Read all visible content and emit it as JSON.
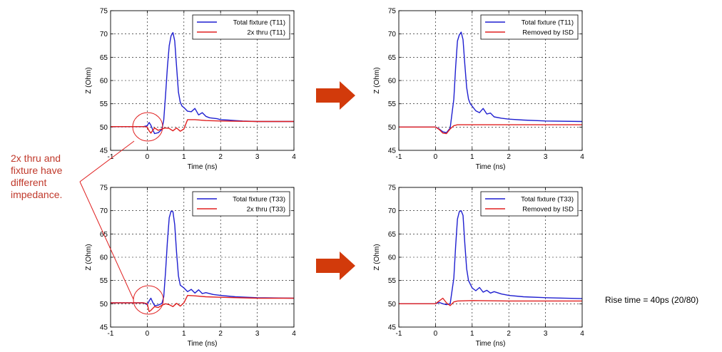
{
  "annotation": {
    "lines": [
      "2x thru and",
      "fixture have",
      "different",
      "impedance."
    ]
  },
  "rise_time": "Rise time = 40ps (20/80)",
  "colors": {
    "blue": "#1f1fd0",
    "red": "#e02020",
    "arrow": "#d23a0b",
    "note": "#c0392b"
  },
  "chart_data": [
    {
      "type": "line",
      "xlabel": "Time (ns)",
      "ylabel": "Z (Ohm)",
      "xlim": [
        -1,
        4
      ],
      "ylim": [
        45,
        75
      ],
      "xticks": [
        "-1",
        "0",
        "1",
        "2",
        "3",
        "4"
      ],
      "yticks": [
        "45",
        "50",
        "55",
        "60",
        "65",
        "70",
        "75"
      ],
      "grid": true,
      "legend": "top-right",
      "series": [
        {
          "name": "Total fixture (T11)",
          "color": "blue",
          "x": [
            -1,
            -0.1,
            0,
            0.05,
            0.1,
            0.15,
            0.2,
            0.3,
            0.4,
            0.45,
            0.5,
            0.55,
            0.6,
            0.65,
            0.7,
            0.75,
            0.8,
            0.85,
            0.9,
            0.95,
            1.0,
            1.1,
            1.2,
            1.3,
            1.4,
            1.5,
            1.6,
            1.7,
            1.8,
            1.9,
            2.0,
            2.2,
            2.4,
            2.6,
            3.0,
            4.0
          ],
          "y": [
            50.1,
            50.1,
            50.3,
            51.0,
            50.4,
            49.4,
            48.6,
            48.8,
            49.5,
            51.5,
            57.0,
            63.0,
            67.5,
            69.6,
            70.3,
            68.5,
            63.0,
            57.5,
            55.3,
            54.5,
            54.2,
            53.4,
            53.3,
            54.0,
            52.6,
            53.1,
            52.3,
            52.0,
            51.9,
            51.8,
            51.6,
            51.5,
            51.4,
            51.3,
            51.2,
            51.2
          ]
        },
        {
          "name": "2x thru (T11)",
          "color": "red",
          "x": [
            -1,
            -0.1,
            0,
            0.05,
            0.1,
            0.15,
            0.2,
            0.3,
            0.4,
            0.5,
            0.6,
            0.7,
            0.8,
            0.9,
            1.0,
            1.1,
            1.3,
            1.6,
            2.0,
            3.0,
            4.0
          ],
          "y": [
            50.1,
            50.1,
            50.0,
            49.2,
            48.7,
            49.3,
            49.8,
            49.3,
            49.6,
            49.8,
            49.7,
            49.2,
            49.8,
            49.1,
            49.6,
            51.6,
            51.6,
            51.4,
            51.3,
            51.2,
            51.2
          ]
        }
      ]
    },
    {
      "type": "line",
      "xlabel": "Time (ns)",
      "ylabel": "Z (Ohm)",
      "xlim": [
        -1,
        4
      ],
      "ylim": [
        45,
        75
      ],
      "xticks": [
        "-1",
        "0",
        "1",
        "2",
        "3",
        "4"
      ],
      "yticks": [
        "45",
        "50",
        "55",
        "60",
        "65",
        "70",
        "75"
      ],
      "grid": true,
      "legend": "top-right",
      "series": [
        {
          "name": "Total fixture (T11)",
          "color": "blue",
          "x": [
            -1,
            0,
            0.1,
            0.2,
            0.3,
            0.4,
            0.5,
            0.55,
            0.6,
            0.65,
            0.7,
            0.75,
            0.8,
            0.85,
            0.9,
            0.95,
            1.0,
            1.1,
            1.2,
            1.3,
            1.4,
            1.5,
            1.6,
            1.8,
            2.0,
            2.4,
            3.0,
            4.0
          ],
          "y": [
            50.0,
            50.0,
            49.6,
            49.0,
            48.8,
            49.8,
            56.0,
            63.0,
            68.5,
            69.8,
            70.4,
            68.8,
            63.5,
            58.5,
            56.0,
            55.0,
            54.5,
            53.5,
            53.1,
            54.0,
            52.8,
            53.0,
            52.2,
            51.9,
            51.7,
            51.5,
            51.3,
            51.2
          ]
        },
        {
          "name": "Removed by ISD",
          "color": "red",
          "x": [
            -1,
            0,
            0.1,
            0.2,
            0.3,
            0.4,
            0.5,
            0.6,
            1.0,
            2.0,
            4.0
          ],
          "y": [
            50.0,
            50.0,
            49.5,
            48.7,
            48.6,
            49.6,
            50.3,
            50.5,
            50.5,
            50.5,
            50.5
          ]
        }
      ]
    },
    {
      "type": "line",
      "xlabel": "Time (ns)",
      "ylabel": "Z (Ohm)",
      "xlim": [
        -1,
        4
      ],
      "ylim": [
        45,
        75
      ],
      "xticks": [
        "-1",
        "0",
        "1",
        "2",
        "3",
        "4"
      ],
      "yticks": [
        "45",
        "50",
        "55",
        "60",
        "65",
        "70",
        "75"
      ],
      "grid": true,
      "legend": "top-right",
      "series": [
        {
          "name": "Total fixture (T33)",
          "color": "blue",
          "x": [
            -1,
            -0.1,
            0,
            0.05,
            0.1,
            0.15,
            0.2,
            0.3,
            0.4,
            0.45,
            0.5,
            0.55,
            0.6,
            0.65,
            0.7,
            0.75,
            0.8,
            0.85,
            0.9,
            1.0,
            1.1,
            1.2,
            1.3,
            1.4,
            1.5,
            1.6,
            1.8,
            2.0,
            2.4,
            3.0,
            4.0
          ],
          "y": [
            50.2,
            50.2,
            49.8,
            50.6,
            51.2,
            50.3,
            49.6,
            49.7,
            50.1,
            51.5,
            57.0,
            63.5,
            68.5,
            69.9,
            69.8,
            67.0,
            61.0,
            56.0,
            54.0,
            53.4,
            52.6,
            53.1,
            52.3,
            53.0,
            52.2,
            52.4,
            52.0,
            51.8,
            51.5,
            51.3,
            51.2
          ]
        },
        {
          "name": "2x thru (T33)",
          "color": "red",
          "x": [
            -1,
            -0.1,
            0,
            0.05,
            0.1,
            0.2,
            0.3,
            0.4,
            0.5,
            0.6,
            0.7,
            0.8,
            0.9,
            1.0,
            1.1,
            1.3,
            1.6,
            2.0,
            3.0,
            4.0
          ],
          "y": [
            50.2,
            50.2,
            50.0,
            48.3,
            48.6,
            49.4,
            49.2,
            49.7,
            50.0,
            49.8,
            49.4,
            50.1,
            49.5,
            50.2,
            51.8,
            51.7,
            51.5,
            51.4,
            51.2,
            51.2
          ]
        }
      ]
    },
    {
      "type": "line",
      "xlabel": "Time (ns)",
      "ylabel": "Z (Ohm)",
      "xlim": [
        -1,
        4
      ],
      "ylim": [
        45,
        75
      ],
      "xticks": [
        "-1",
        "0",
        "1",
        "2",
        "3",
        "4"
      ],
      "yticks": [
        "45",
        "50",
        "55",
        "60",
        "65",
        "70",
        "75"
      ],
      "grid": true,
      "legend": "top-right",
      "series": [
        {
          "name": "Total fixture (T33)",
          "color": "blue",
          "x": [
            -1,
            0,
            0.1,
            0.2,
            0.3,
            0.4,
            0.5,
            0.55,
            0.6,
            0.65,
            0.7,
            0.75,
            0.8,
            0.85,
            0.9,
            1.0,
            1.1,
            1.2,
            1.3,
            1.4,
            1.5,
            1.6,
            1.8,
            2.0,
            2.4,
            3.0,
            4.0
          ],
          "y": [
            50.0,
            50.0,
            50.3,
            50.0,
            49.8,
            50.0,
            55.5,
            62.5,
            68.2,
            69.8,
            70.0,
            69.0,
            63.0,
            57.5,
            55.0,
            53.4,
            52.8,
            53.5,
            52.5,
            52.9,
            52.3,
            52.6,
            52.1,
            51.8,
            51.5,
            51.3,
            51.1
          ]
        },
        {
          "name": "Removed by ISD",
          "color": "red",
          "x": [
            -1,
            0,
            0.1,
            0.2,
            0.3,
            0.4,
            0.5,
            0.6,
            1.0,
            2.0,
            4.0
          ],
          "y": [
            50.0,
            50.0,
            50.6,
            51.2,
            50.2,
            49.6,
            50.4,
            50.6,
            50.7,
            50.6,
            50.6
          ]
        }
      ]
    }
  ]
}
